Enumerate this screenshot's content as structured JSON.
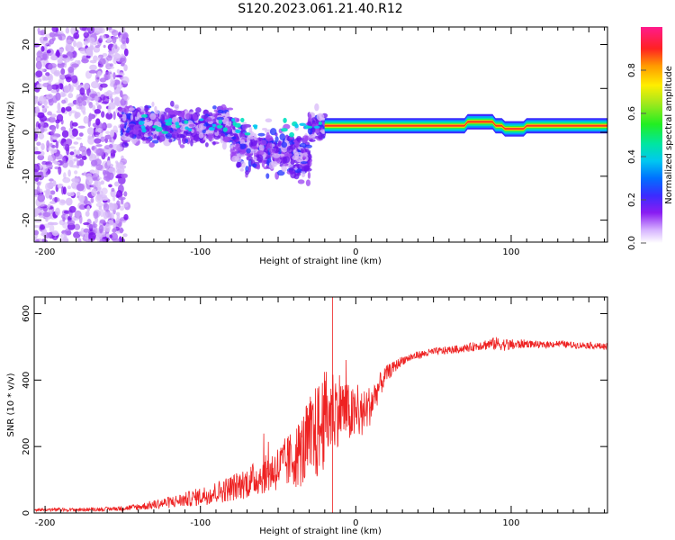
{
  "title": "S120.2023.061.21.40.R12",
  "colors": {
    "snr_line": "#ee2222",
    "axis": "#000000"
  },
  "chart_data": [
    {
      "type": "heatmap",
      "name": "spectrogram",
      "xlabel": "Height of straight line (km)",
      "ylabel": "Frequency (Hz)",
      "xlim": [
        -207,
        162
      ],
      "ylim": [
        -25,
        24
      ],
      "xticks": [
        -200,
        -100,
        0,
        100
      ],
      "yticks": [
        -20,
        -10,
        0,
        10,
        20
      ],
      "colorbar": {
        "label": "Normalized spectral amplitude",
        "range": [
          0,
          1
        ],
        "ticks": [
          "0.0",
          "0.2",
          "0.4",
          "0.6",
          "0.8"
        ]
      },
      "features": [
        {
          "region": "x from -207 to -150 km",
          "freq_spread_hz": [
            -25,
            24
          ],
          "amplitude": "0.05-0.2 (scattered)"
        },
        {
          "region": "x from -150 to -20 km",
          "freq_center_hz": 1,
          "freq_spread_hz": [
            -12,
            10
          ],
          "amplitude": "0.1-0.4"
        },
        {
          "region": "x from -20 to 162 km",
          "freq_center_hz": 1.5,
          "freq_spread_hz": [
            0,
            3
          ],
          "amplitude": "0.8-1.0 (narrow band)"
        }
      ]
    },
    {
      "type": "line",
      "name": "snr",
      "xlabel": "Height of straight line (km)",
      "ylabel": "SNR (10 * v/v)",
      "xlim": [
        -207,
        162
      ],
      "ylim": [
        0,
        650
      ],
      "xticks": [
        -200,
        -100,
        0,
        100
      ],
      "yticks": [
        0,
        200,
        400,
        600
      ],
      "series": [
        {
          "name": "SNR",
          "x": [
            -207,
            -180,
            -160,
            -150,
            -140,
            -130,
            -120,
            -110,
            -100,
            -90,
            -80,
            -70,
            -60,
            -50,
            -40,
            -35,
            -30,
            -25,
            -20,
            -15,
            -10,
            -5,
            0,
            5,
            10,
            15,
            20,
            25,
            30,
            40,
            50,
            60,
            70,
            80,
            90,
            100,
            110,
            120,
            130,
            140,
            150,
            162
          ],
          "values": [
            10,
            10,
            12,
            14,
            18,
            25,
            32,
            40,
            50,
            62,
            75,
            92,
            112,
            135,
            165,
            185,
            210,
            240,
            280,
            310,
            320,
            300,
            290,
            300,
            330,
            380,
            420,
            440,
            460,
            475,
            485,
            490,
            495,
            505,
            510,
            505,
            510,
            505,
            510,
            505,
            505,
            500
          ],
          "noise_amplitude": [
            5,
            5,
            6,
            8,
            10,
            14,
            18,
            22,
            28,
            34,
            40,
            48,
            55,
            70,
            90,
            110,
            140,
            150,
            150,
            130,
            110,
            90,
            80,
            70,
            60,
            40,
            25,
            18,
            14,
            12,
            12,
            12,
            12,
            15,
            20,
            18,
            12,
            10,
            10,
            10,
            10,
            10
          ]
        }
      ]
    }
  ]
}
